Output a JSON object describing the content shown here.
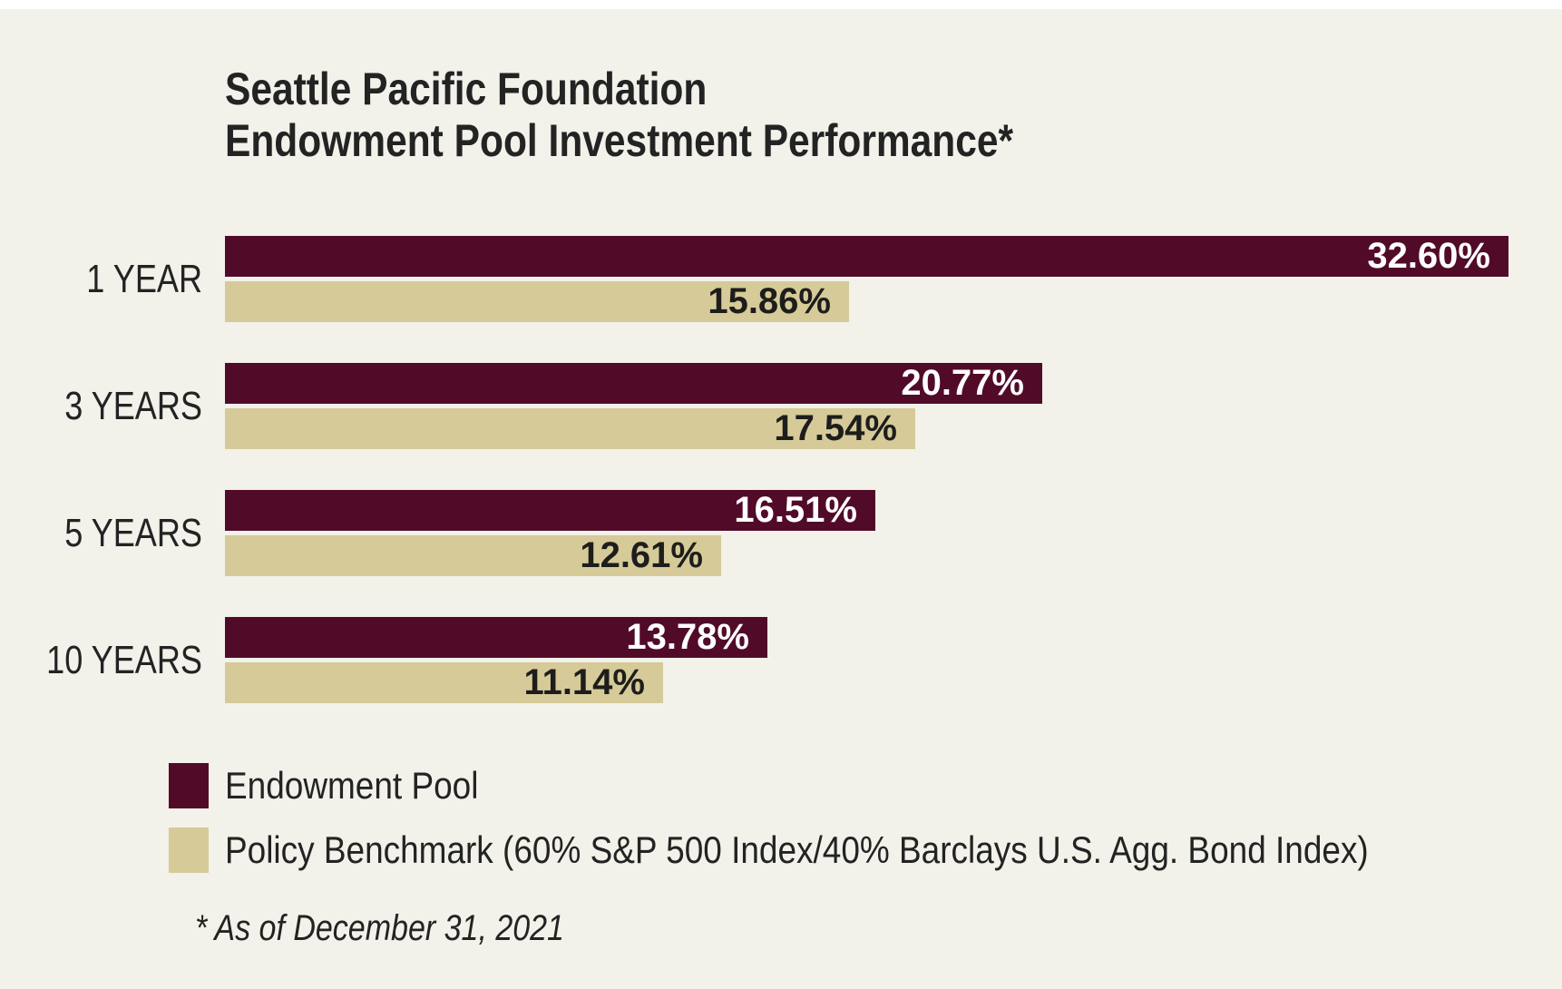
{
  "colors": {
    "background": "#f2f1ea",
    "top_strip": "#ffffff",
    "endowment_bar": "#510b28",
    "benchmark_bar": "#d6ca99",
    "text": "#232323",
    "value_on_endowment": "#ffffff",
    "value_on_benchmark": "#1d1d1b"
  },
  "title": {
    "line1": "Seattle Pacific Foundation",
    "line2": "Endowment Pool Investment Performance*"
  },
  "chart_data": {
    "type": "bar",
    "orientation": "horizontal",
    "title": "Seattle Pacific Foundation Endowment Pool Investment Performance*",
    "categories": [
      "1 YEAR",
      "3 YEARS",
      "5 YEARS",
      "10 YEARS"
    ],
    "series": [
      {
        "name": "Endowment Pool",
        "values": [
          32.6,
          20.77,
          16.51,
          13.78
        ],
        "labels": [
          "32.60%",
          "20.77%",
          "16.51%",
          "13.78%"
        ],
        "color": "#510b28"
      },
      {
        "name": "Policy Benchmark (60% S&P 500 Index/40% Barclays U.S. Agg. Bond Index)",
        "values": [
          15.86,
          17.54,
          12.61,
          11.14
        ],
        "labels": [
          "15.86%",
          "17.54%",
          "12.61%",
          "11.14%"
        ],
        "color": "#d6ca99"
      }
    ],
    "xlim": [
      0,
      32.6
    ],
    "grid": false,
    "legend_position": "bottom-left",
    "footnote": "* As of December 31, 2021"
  },
  "legend": {
    "items": [
      {
        "label": "Endowment Pool",
        "color": "#510b28"
      },
      {
        "label": "Policy Benchmark (60% S&P 500 Index/40% Barclays U.S. Agg. Bond Index)",
        "color": "#d6ca99"
      }
    ]
  },
  "footnote": "* As of December 31, 2021"
}
